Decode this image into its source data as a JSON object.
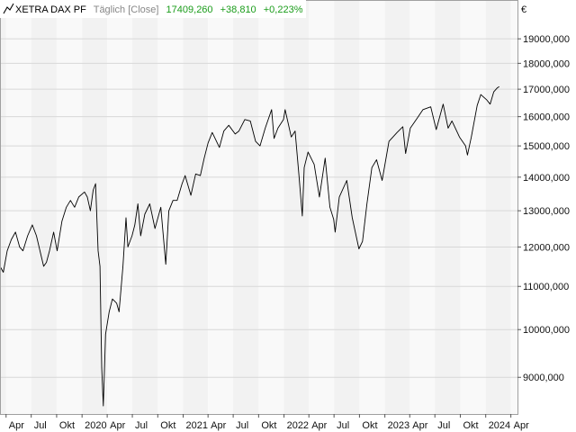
{
  "legend": {
    "icon": "line-chart-icon",
    "name": "XETRA DAX PF",
    "mode": "Täglich [Close]",
    "last": "17409,260",
    "change": "+38,810",
    "change_pct": "+0,223%",
    "colors": {
      "name": "#000000",
      "mode": "#888888",
      "values": "#1a9c1a"
    }
  },
  "chart_data": {
    "type": "line",
    "title": "",
    "xlabel": "",
    "ylabel": "€",
    "log_scale": true,
    "grid": true,
    "ylim": [
      8300,
      20700
    ],
    "xlim": [
      "2019-03-10",
      "2024-04-25"
    ],
    "y_ticks": [
      {
        "value": 9000,
        "label": "9000,000"
      },
      {
        "value": 10000,
        "label": "10000,000"
      },
      {
        "value": 11000,
        "label": "11000,000"
      },
      {
        "value": 12000,
        "label": "12000,000"
      },
      {
        "value": 13000,
        "label": "13000,000"
      },
      {
        "value": 14000,
        "label": "14000,000"
      },
      {
        "value": 15000,
        "label": "15000,000"
      },
      {
        "value": 16000,
        "label": "16000,000"
      },
      {
        "value": 17000,
        "label": "17000,000"
      },
      {
        "value": 18000,
        "label": "18000,000"
      },
      {
        "value": 19000,
        "label": "19000,000"
      }
    ],
    "x_ticks": [
      {
        "date": "2019-04-01",
        "label": "Apr"
      },
      {
        "date": "2019-07-01",
        "label": "Jul"
      },
      {
        "date": "2019-10-01",
        "label": "Okt"
      },
      {
        "date": "2020-01-01",
        "label": "2020"
      },
      {
        "date": "2020-04-01",
        "label": "Apr"
      },
      {
        "date": "2020-07-01",
        "label": "Jul"
      },
      {
        "date": "2020-10-01",
        "label": "Okt"
      },
      {
        "date": "2021-01-01",
        "label": "2021"
      },
      {
        "date": "2021-04-01",
        "label": "Apr"
      },
      {
        "date": "2021-07-01",
        "label": "Jul"
      },
      {
        "date": "2021-10-01",
        "label": "Okt"
      },
      {
        "date": "2022-01-01",
        "label": "2022"
      },
      {
        "date": "2022-04-01",
        "label": "Apr"
      },
      {
        "date": "2022-07-01",
        "label": "Jul"
      },
      {
        "date": "2022-10-01",
        "label": "Okt"
      },
      {
        "date": "2023-01-01",
        "label": "2023"
      },
      {
        "date": "2023-04-01",
        "label": "Apr"
      },
      {
        "date": "2023-07-01",
        "label": "Jul"
      },
      {
        "date": "2023-10-01",
        "label": "Okt"
      },
      {
        "date": "2024-01-01",
        "label": "2024"
      },
      {
        "date": "2024-04-01",
        "label": "Apr"
      }
    ],
    "series": [
      {
        "name": "",
        "color": "#000000",
        "points": [
          [
            "2019-03-10",
            11500
          ],
          [
            "2019-03-22",
            11350
          ],
          [
            "2019-04-05",
            11900
          ],
          [
            "2019-04-20",
            12200
          ],
          [
            "2019-05-05",
            12400
          ],
          [
            "2019-05-20",
            12000
          ],
          [
            "2019-06-01",
            11900
          ],
          [
            "2019-06-18",
            12300
          ],
          [
            "2019-07-05",
            12600
          ],
          [
            "2019-07-20",
            12300
          ],
          [
            "2019-08-05",
            11800
          ],
          [
            "2019-08-15",
            11500
          ],
          [
            "2019-08-25",
            11600
          ],
          [
            "2019-09-05",
            11900
          ],
          [
            "2019-09-20",
            12400
          ],
          [
            "2019-10-03",
            11900
          ],
          [
            "2019-10-20",
            12700
          ],
          [
            "2019-11-05",
            13100
          ],
          [
            "2019-11-20",
            13300
          ],
          [
            "2019-12-05",
            13100
          ],
          [
            "2019-12-20",
            13400
          ],
          [
            "2020-01-10",
            13550
          ],
          [
            "2020-01-20",
            13400
          ],
          [
            "2020-01-31",
            13000
          ],
          [
            "2020-02-10",
            13600
          ],
          [
            "2020-02-19",
            13800
          ],
          [
            "2020-02-28",
            11900
          ],
          [
            "2020-03-06",
            11500
          ],
          [
            "2020-03-12",
            9200
          ],
          [
            "2020-03-18",
            8450
          ],
          [
            "2020-03-26",
            9900
          ],
          [
            "2020-04-08",
            10400
          ],
          [
            "2020-04-20",
            10700
          ],
          [
            "2020-05-05",
            10600
          ],
          [
            "2020-05-14",
            10400
          ],
          [
            "2020-05-28",
            11500
          ],
          [
            "2020-06-08",
            12800
          ],
          [
            "2020-06-15",
            12000
          ],
          [
            "2020-06-30",
            12300
          ],
          [
            "2020-07-10",
            12600
          ],
          [
            "2020-07-21",
            13200
          ],
          [
            "2020-07-31",
            12300
          ],
          [
            "2020-08-15",
            12900
          ],
          [
            "2020-09-02",
            13200
          ],
          [
            "2020-09-21",
            12500
          ],
          [
            "2020-10-12",
            13100
          ],
          [
            "2020-10-30",
            11550
          ],
          [
            "2020-11-10",
            13000
          ],
          [
            "2020-11-25",
            13300
          ],
          [
            "2020-12-10",
            13300
          ],
          [
            "2020-12-28",
            13800
          ],
          [
            "2021-01-08",
            14050
          ],
          [
            "2021-01-29",
            13450
          ],
          [
            "2021-02-15",
            14100
          ],
          [
            "2021-03-04",
            14050
          ],
          [
            "2021-03-18",
            14600
          ],
          [
            "2021-04-01",
            15100
          ],
          [
            "2021-04-16",
            15450
          ],
          [
            "2021-05-12",
            14950
          ],
          [
            "2021-05-28",
            15500
          ],
          [
            "2021-06-15",
            15700
          ],
          [
            "2021-07-08",
            15400
          ],
          [
            "2021-07-22",
            15500
          ],
          [
            "2021-08-12",
            15900
          ],
          [
            "2021-09-01",
            15850
          ],
          [
            "2021-09-20",
            15150
          ],
          [
            "2021-10-06",
            15000
          ],
          [
            "2021-10-25",
            15600
          ],
          [
            "2021-11-17",
            16250
          ],
          [
            "2021-11-26",
            15250
          ],
          [
            "2021-12-10",
            15600
          ],
          [
            "2021-12-30",
            15900
          ],
          [
            "2022-01-05",
            16250
          ],
          [
            "2022-01-27",
            15300
          ],
          [
            "2022-02-10",
            15500
          ],
          [
            "2022-02-24",
            14050
          ],
          [
            "2022-03-08",
            12850
          ],
          [
            "2022-03-15",
            14300
          ],
          [
            "2022-03-29",
            14800
          ],
          [
            "2022-04-20",
            14400
          ],
          [
            "2022-05-09",
            13400
          ],
          [
            "2022-05-30",
            14600
          ],
          [
            "2022-06-16",
            13100
          ],
          [
            "2022-06-30",
            12750
          ],
          [
            "2022-07-05",
            12400
          ],
          [
            "2022-07-20",
            13400
          ],
          [
            "2022-08-16",
            13900
          ],
          [
            "2022-09-05",
            12800
          ],
          [
            "2022-09-29",
            11950
          ],
          [
            "2022-10-12",
            12150
          ],
          [
            "2022-10-28",
            13200
          ],
          [
            "2022-11-15",
            14300
          ],
          [
            "2022-12-02",
            14550
          ],
          [
            "2022-12-22",
            13900
          ],
          [
            "2023-01-16",
            15150
          ],
          [
            "2023-02-14",
            15450
          ],
          [
            "2023-03-07",
            15650
          ],
          [
            "2023-03-17",
            14750
          ],
          [
            "2023-04-03",
            15600
          ],
          [
            "2023-04-28",
            15950
          ],
          [
            "2023-05-19",
            16250
          ],
          [
            "2023-06-16",
            16350
          ],
          [
            "2023-07-06",
            15550
          ],
          [
            "2023-07-31",
            16450
          ],
          [
            "2023-08-18",
            15600
          ],
          [
            "2023-09-01",
            15850
          ],
          [
            "2023-09-28",
            15300
          ],
          [
            "2023-10-20",
            15000
          ],
          [
            "2023-10-27",
            14700
          ],
          [
            "2023-11-10",
            15300
          ],
          [
            "2023-12-01",
            16400
          ],
          [
            "2023-12-14",
            16800
          ],
          [
            "2024-01-05",
            16600
          ],
          [
            "2024-01-17",
            16450
          ],
          [
            "2024-01-30",
            16900
          ],
          [
            "2024-02-12",
            17050
          ],
          [
            "2024-02-19",
            17100
          ]
        ]
      }
    ]
  }
}
